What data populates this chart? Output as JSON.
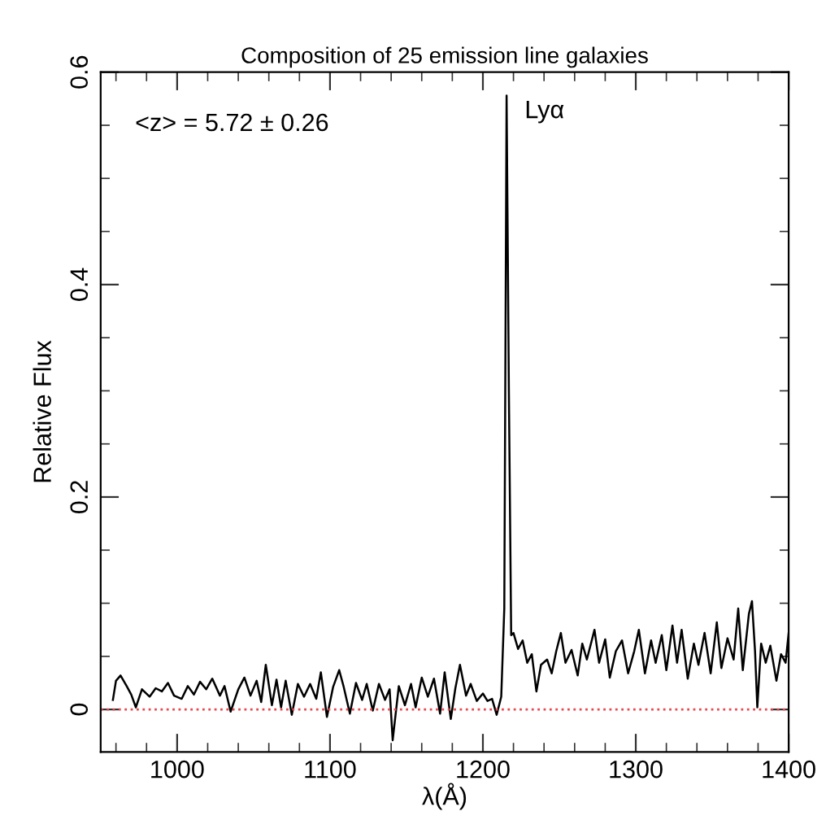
{
  "chart_data": {
    "type": "line",
    "title": "Composition of 25 emission line galaxies",
    "xlabel": "λ(Å)",
    "ylabel": "Relative Flux",
    "annotations": [
      "<z> = 5.72 ± 0.26",
      {
        "text": "Lyα",
        "x": 1215.5,
        "y": 0.578
      }
    ],
    "xlim": [
      950,
      1400
    ],
    "xticks": [
      1000,
      1100,
      1200,
      1300,
      1400
    ],
    "ylim": [
      -0.04,
      0.6
    ],
    "yticks": [
      0,
      0.2,
      0.4,
      0.6
    ],
    "grid": false,
    "legend": false,
    "marker": "none",
    "line_style": "solid",
    "ref_lines": [
      {
        "axis": "y",
        "value": 0,
        "color": "#e8474f",
        "line_style": "dotted"
      }
    ],
    "series": [
      {
        "color": "#000000",
        "x": [
          958,
          960,
          963,
          967,
          970,
          973,
          977,
          982,
          986,
          990,
          994,
          998,
          1003,
          1007,
          1011,
          1015,
          1019,
          1023,
          1028,
          1031,
          1035,
          1040,
          1044,
          1048,
          1052,
          1055,
          1058,
          1062,
          1065,
          1068,
          1071,
          1075,
          1079,
          1083,
          1087,
          1091,
          1094,
          1098,
          1102,
          1106,
          1109,
          1113,
          1117,
          1121,
          1124,
          1128,
          1132,
          1136,
          1139,
          1141,
          1145,
          1149,
          1153,
          1156,
          1160,
          1164,
          1168,
          1172,
          1175,
          1179,
          1182,
          1185,
          1189,
          1192,
          1196,
          1200,
          1203,
          1206,
          1209,
          1212,
          1214,
          1215.5,
          1217,
          1218.5,
          1220,
          1223,
          1226,
          1229,
          1232,
          1235,
          1238,
          1242,
          1245,
          1248,
          1251,
          1254,
          1258,
          1262,
          1265,
          1268,
          1273,
          1276,
          1280,
          1283,
          1287,
          1291,
          1295,
          1299,
          1302,
          1306,
          1310,
          1313,
          1317,
          1320,
          1324,
          1327,
          1330,
          1334,
          1338,
          1341,
          1345,
          1349,
          1353,
          1356,
          1360,
          1364,
          1367,
          1370,
          1374,
          1376,
          1378,
          1379.5,
          1382,
          1385,
          1388,
          1392,
          1395,
          1398,
          1400
        ],
        "values": [
          0.009,
          0.027,
          0.032,
          0.022,
          0.014,
          0.002,
          0.019,
          0.012,
          0.02,
          0.017,
          0.025,
          0.013,
          0.01,
          0.022,
          0.014,
          0.026,
          0.019,
          0.029,
          0.013,
          0.022,
          -0.002,
          0.019,
          0.03,
          0.013,
          0.027,
          0.007,
          0.042,
          0.004,
          0.028,
          0.002,
          0.027,
          -0.005,
          0.024,
          0.012,
          0.024,
          0.01,
          0.035,
          -0.007,
          0.021,
          0.037,
          0.021,
          -0.004,
          0.025,
          0.009,
          0.024,
          -0.001,
          0.024,
          0.009,
          0.019,
          -0.029,
          0.022,
          0.004,
          0.024,
          0.002,
          0.03,
          0.012,
          0.029,
          -0.004,
          0.035,
          -0.009,
          0.02,
          0.042,
          0.013,
          0.024,
          0.008,
          0.015,
          0.008,
          0.01,
          -0.005,
          0.012,
          0.095,
          0.578,
          0.3,
          0.07,
          0.072,
          0.057,
          0.065,
          0.044,
          0.052,
          0.017,
          0.042,
          0.047,
          0.034,
          0.055,
          0.072,
          0.044,
          0.056,
          0.032,
          0.062,
          0.047,
          0.075,
          0.044,
          0.066,
          0.03,
          0.055,
          0.065,
          0.034,
          0.055,
          0.075,
          0.034,
          0.065,
          0.044,
          0.07,
          0.037,
          0.079,
          0.044,
          0.075,
          0.029,
          0.062,
          0.042,
          0.072,
          0.034,
          0.082,
          0.039,
          0.067,
          0.047,
          0.095,
          0.037,
          0.09,
          0.102,
          0.055,
          0.002,
          0.062,
          0.044,
          0.06,
          0.027,
          0.052,
          0.044,
          0.072
        ]
      }
    ]
  }
}
